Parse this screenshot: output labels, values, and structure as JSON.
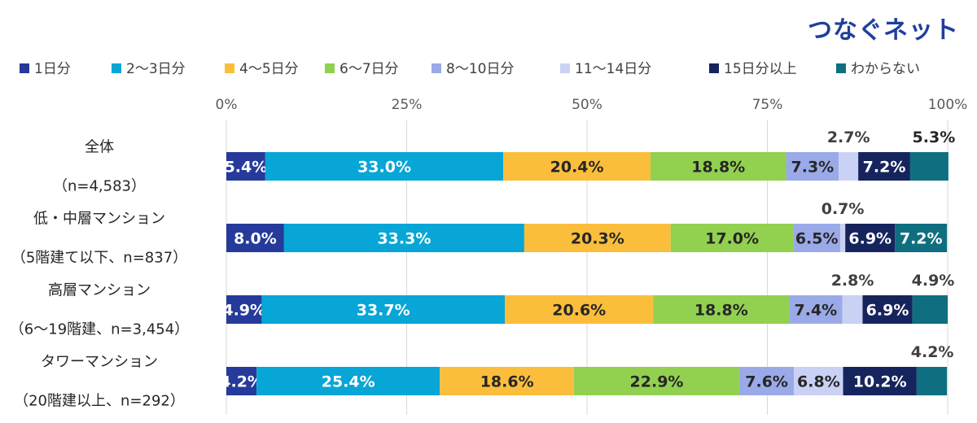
{
  "brand": "つなぐネット",
  "chart_data": {
    "type": "bar",
    "orientation": "horizontal",
    "stacked": true,
    "xlim": [
      0,
      100
    ],
    "ticks": [
      "0%",
      "25%",
      "50%",
      "75%",
      "100%"
    ],
    "grid": true,
    "legend_position": "top",
    "categories": [
      [
        "全体",
        "（n=4,583）"
      ],
      [
        "低・中層マンション",
        "（5階建て以下、n=837）"
      ],
      [
        "高層マンション",
        "（6～19階建、n=3,454）"
      ],
      [
        "タワーマンション",
        "（20階建以上、n=292）"
      ]
    ],
    "series": [
      {
        "name": "1日分",
        "color": "#253a9a",
        "values": [
          5.4,
          8.0,
          4.9,
          4.2
        ],
        "labels": [
          "5.4%",
          "8.0%",
          "4.9%",
          "4.2%"
        ]
      },
      {
        "name": "2～3日分",
        "color": "#07a6d6",
        "values": [
          33.0,
          33.3,
          33.7,
          25.4
        ],
        "labels": [
          "33.0%",
          "33.3%",
          "33.7%",
          "25.4%"
        ]
      },
      {
        "name": "4～5日分",
        "color": "#fbbe3c",
        "values": [
          20.4,
          20.3,
          20.6,
          18.6
        ],
        "labels": [
          "20.4%",
          "20.3%",
          "20.6%",
          "18.6%"
        ]
      },
      {
        "name": "6～7日分",
        "color": "#92d050",
        "values": [
          18.8,
          17.0,
          18.8,
          22.9
        ],
        "labels": [
          "18.8%",
          "17.0%",
          "18.8%",
          "22.9%"
        ]
      },
      {
        "name": "8～10日分",
        "color": "#9aaae8",
        "values": [
          7.3,
          6.5,
          7.4,
          7.6
        ],
        "labels": [
          "7.3%",
          "6.5%",
          "7.4%",
          "7.6%"
        ]
      },
      {
        "name": "11～14日分",
        "color": "#c9d2f4",
        "values": [
          2.7,
          0.7,
          2.8,
          6.8
        ],
        "labels": [
          "2.7%",
          "0.7%",
          "2.8%",
          "6.8%"
        ]
      },
      {
        "name": "15日分以上",
        "color": "#16245e",
        "values": [
          7.2,
          6.9,
          6.9,
          10.2
        ],
        "labels": [
          "7.2%",
          "6.9%",
          "6.9%",
          "10.2%"
        ]
      },
      {
        "name": "わからない",
        "color": "#0f6f80",
        "values": [
          5.3,
          7.2,
          4.9,
          4.2
        ],
        "labels": [
          "5.3%",
          "7.2%",
          "4.9%",
          "4.2%"
        ]
      }
    ],
    "label_placement": [
      [
        "in",
        "in",
        "in",
        "in",
        "in",
        "above",
        "in",
        "above"
      ],
      [
        "in",
        "in",
        "in",
        "in",
        "in",
        "above",
        "in",
        "in"
      ],
      [
        "in",
        "in",
        "in",
        "in",
        "in",
        "above",
        "in",
        "above"
      ],
      [
        "in",
        "in",
        "in",
        "in",
        "in",
        "in",
        "in",
        "above"
      ]
    ]
  }
}
